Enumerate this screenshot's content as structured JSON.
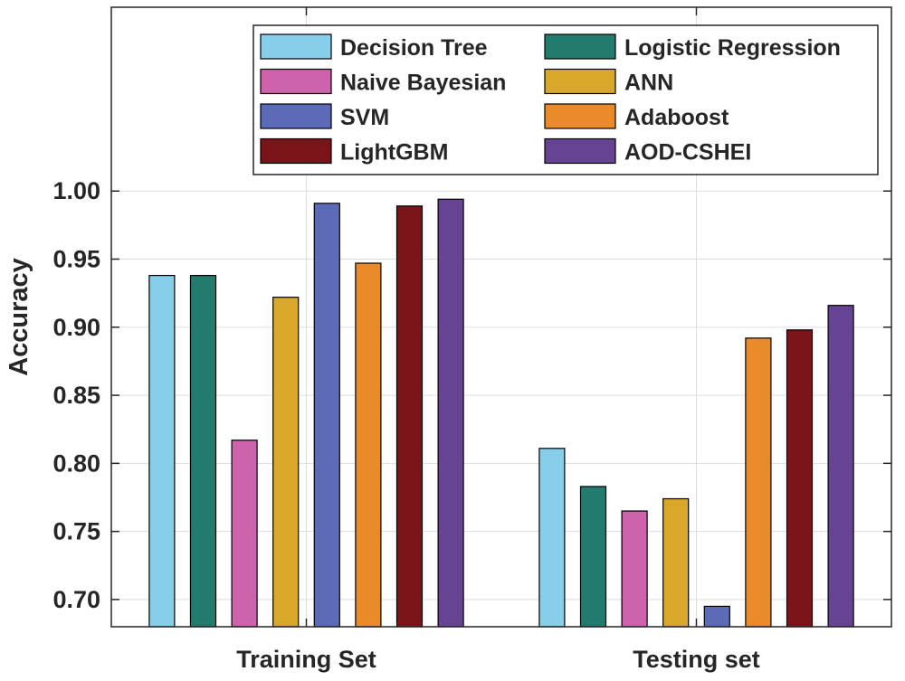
{
  "chart_data": {
    "type": "bar",
    "title": "",
    "xlabel": "",
    "ylabel": "Accuracy",
    "ylim": [
      0.68,
      1.135
    ],
    "yticks": [
      0.7,
      0.75,
      0.8,
      0.85,
      0.9,
      0.95,
      1.0
    ],
    "ytick_labels": [
      "0.70",
      "0.75",
      "0.80",
      "0.85",
      "0.90",
      "0.95",
      "1.00"
    ],
    "grid": true,
    "legend_position": "top-right",
    "legend_columns": 2,
    "categories": [
      "Training Set",
      "Testing set"
    ],
    "series": [
      {
        "name": "Decision Tree",
        "color": "#87CEEB",
        "values": [
          0.938,
          0.811
        ]
      },
      {
        "name": "Logistic Regression",
        "color": "#237B6E",
        "values": [
          0.938,
          0.783
        ]
      },
      {
        "name": "Naive Bayesian",
        "color": "#CD63AC",
        "values": [
          0.817,
          0.765
        ]
      },
      {
        "name": "ANN",
        "color": "#D9A82B",
        "values": [
          0.922,
          0.774
        ]
      },
      {
        "name": "SVM",
        "color": "#5C6BB8",
        "values": [
          0.991,
          0.695
        ]
      },
      {
        "name": "Adaboost",
        "color": "#E98B2A",
        "values": [
          0.947,
          0.892
        ]
      },
      {
        "name": "LightGBM",
        "color": "#7A1419",
        "values": [
          0.989,
          0.898
        ]
      },
      {
        "name": "AOD-CSHEI",
        "color": "#664393",
        "values": [
          0.994,
          0.916
        ]
      }
    ]
  }
}
